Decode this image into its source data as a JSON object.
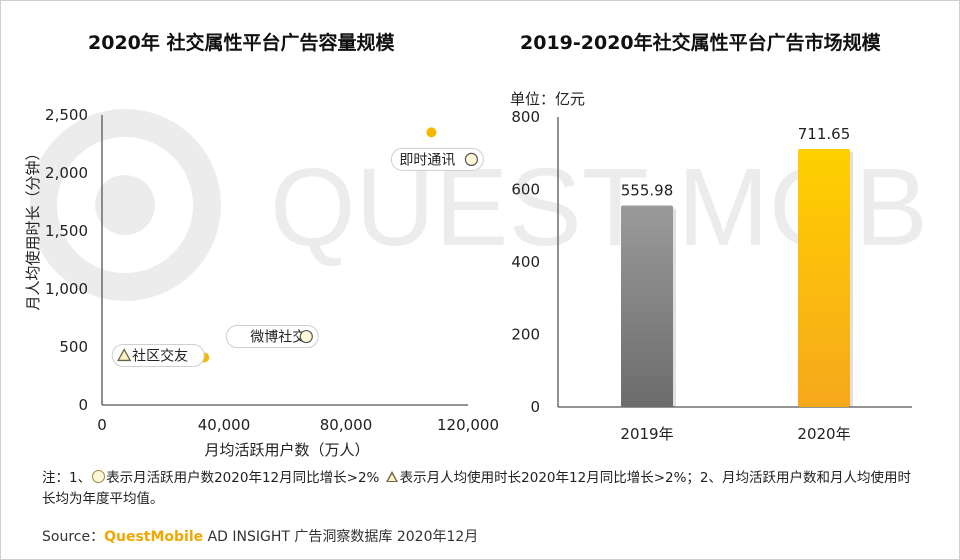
{
  "charts": {
    "left_title": "2020年 社交属性平台广告容量规模",
    "right_title": "2019-2020年社交属性平台广告市场规模"
  },
  "chart_data": [
    {
      "type": "scatter",
      "title": "2020年 社交属性平台广告容量规模",
      "xlabel": "月均活跃用户数（万人）",
      "ylabel": "月人均使用时长（分钟）",
      "xlim": [
        0,
        120000
      ],
      "ylim": [
        0,
        2500
      ],
      "x_ticks": [
        "0",
        "40,000",
        "80,000",
        "120,000"
      ],
      "y_ticks": [
        "0",
        "500",
        "1,000",
        "1,500",
        "2,000",
        "2,500"
      ],
      "color": "#f5b800",
      "points": [
        {
          "label": "即时通讯",
          "x": 108000,
          "y": 2350,
          "marks": [
            "circle"
          ]
        },
        {
          "label": "微博社交",
          "x": 46000,
          "y": 590,
          "marks": [
            "circle"
          ]
        },
        {
          "label": "社区交友",
          "x": 33500,
          "y": 410,
          "marks": [
            "triangle"
          ]
        }
      ]
    },
    {
      "type": "bar",
      "title": "2019-2020年社交属性平台广告市场规模",
      "unit_label": "单位：亿元",
      "categories": [
        "2019年",
        "2020年"
      ],
      "values": [
        555.98,
        711.65
      ],
      "value_labels": [
        "555.98",
        "711.65"
      ],
      "colors": [
        "#8a8a8a",
        "#f9b800"
      ],
      "ylim": [
        0,
        800
      ],
      "y_ticks": [
        "0",
        "200",
        "400",
        "600",
        "800"
      ]
    }
  ],
  "footer": {
    "note_prefix": "注：1、",
    "note_circle_text": "表示月活跃用户数2020年12月同比增长>2%",
    "note_triangle_text": "表示月人均使用时长2020年12月同比增长>2%；2、月均活跃用户数和月人均使用时长均为年度平均值。",
    "source_prefix": "Source：",
    "source_brand": "QuestMobile",
    "source_rest": " AD INSIGHT 广告洞察数据库 2020年12月"
  },
  "watermark_text": "QUEST MOBILE"
}
